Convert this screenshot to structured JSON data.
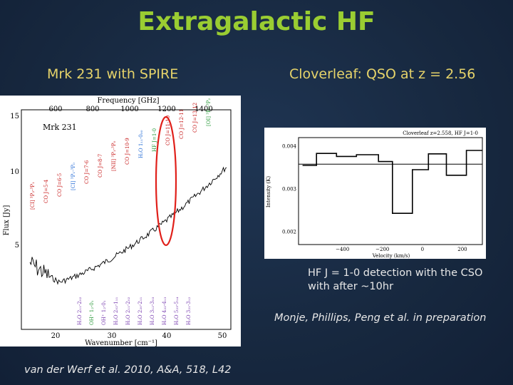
{
  "title": "Extragalactic HF",
  "left_panel": {
    "subtitle": "Mrk 231 with SPIRE",
    "reference": "van der Werf et al. 2010, A&A, 518, L42",
    "plot": {
      "source_label": "Mrk 231",
      "top_axis_label": "Frequency [GHz]",
      "bottom_axis_label": "Wavenumber [cm⁻¹]",
      "y_axis_label": "Flux [Jy]",
      "top_ticks": [
        "600",
        "800",
        "1000",
        "1200",
        "1400"
      ],
      "bottom_ticks": [
        "20",
        "30",
        "40",
        "50"
      ],
      "y_ticks": [
        "15",
        "10",
        "5"
      ],
      "line_labels_upper": [
        "[CI] ³P₂-³P₁",
        "CO J=5-4",
        "CO J=6-5",
        "[CI] ³P₁-³P₀",
        "CO J=7-6",
        "CO J=8-7",
        "[NII] ³P₁-³P₀",
        "CO J=10-9",
        "H₂O 1₁₁-0₀₀",
        "HF J=1-0",
        "CO J=11-10",
        "CO J=12-11",
        "CO J=13-12",
        "[OI] ³P₁-³P₂"
      ],
      "line_labels_lower": [
        "H₂O 2₁₁-2₀₂",
        "OH⁺ 1₂-0₁",
        "OH⁺ 1₂-0₁",
        "H₂O 2₀₂-1₁₁",
        "H₂O 2₁₁-2₀₂",
        "H₂O 2₂₀-2₁₁",
        "H₂O 3₁₂-3₀₃",
        "H₂O 4₂₂-4₁₃",
        "H₂O 5₂₃-5₁₄",
        "H₂O 3₂₁-3₁₂"
      ]
    }
  },
  "right_panel": {
    "subtitle": "Cloverleaf: QSO at z = 2.56",
    "caption": "HF J = 1-0 detection with the CSO with after ~10hr",
    "authors": "Monje, Phillips, Peng et al. in preparation",
    "plot": {
      "header": "Cloverleaf z=2.558, HF J=1-0",
      "x_axis_label": "Velocity (km/s)",
      "y_axis_label": "Intensity (K)",
      "x_ticks": [
        "−400",
        "−200",
        "0",
        "200"
      ],
      "y_ticks": [
        "0.004",
        "0.003",
        "0.002"
      ]
    }
  },
  "chart_data": {
    "type": "line",
    "title": "Cloverleaf z=2.558, HF J=1-0",
    "xlabel": "Velocity (km/s)",
    "ylabel": "Intensity (K)",
    "xlim": [
      -620,
      300
    ],
    "ylim": [
      0.0017,
      0.0042
    ],
    "series": [
      {
        "style": "step",
        "x": [
          -600,
          -530,
          -430,
          -330,
          -220,
          -150,
          -50,
          30,
          120,
          220
        ],
        "y": [
          0.00355,
          0.00383,
          0.00376,
          0.0038,
          0.00364,
          0.00243,
          0.00345,
          0.00382,
          0.00332,
          0.0039
        ]
      }
    ],
    "reference_line": 0.00358
  }
}
